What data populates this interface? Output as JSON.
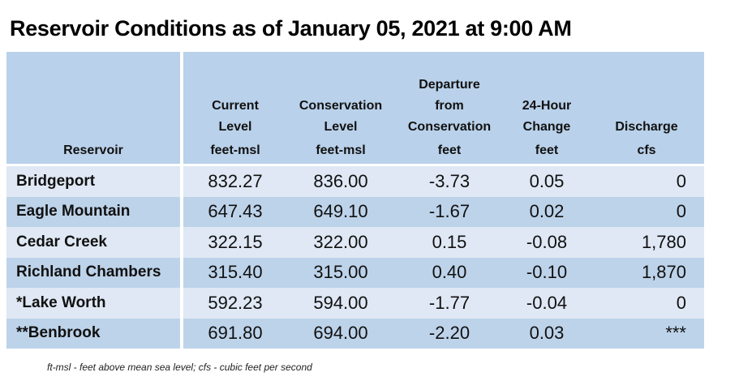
{
  "title": "Reservoir Conditions as of January 05, 2021 at 9:00 AM",
  "table": {
    "headers": [
      {
        "lines": [
          "",
          "",
          "",
          ""
        ],
        "unit": "Reservoir"
      },
      {
        "lines": [
          "",
          "",
          "Current",
          "Level"
        ],
        "unit": "feet-msl"
      },
      {
        "lines": [
          "",
          "",
          "Conservation",
          "Level"
        ],
        "unit": "feet-msl"
      },
      {
        "lines": [
          "",
          "Departure",
          "from",
          "Conservation"
        ],
        "unit": "feet"
      },
      {
        "lines": [
          "",
          "",
          "24-Hour",
          "Change"
        ],
        "unit": "feet"
      },
      {
        "lines": [
          "",
          "",
          "",
          "Discharge"
        ],
        "unit": "cfs"
      }
    ],
    "rows": [
      {
        "name": "Bridgeport",
        "current": "832.27",
        "conservation": "836.00",
        "departure": "-3.73",
        "change": "0.05",
        "discharge": "0"
      },
      {
        "name": "Eagle Mountain",
        "current": "647.43",
        "conservation": "649.10",
        "departure": "-1.67",
        "change": "0.02",
        "discharge": "0"
      },
      {
        "name": "Cedar Creek",
        "current": "322.15",
        "conservation": "322.00",
        "departure": "0.15",
        "change": "-0.08",
        "discharge": "1,780"
      },
      {
        "name": "Richland Chambers",
        "current": "315.40",
        "conservation": "315.00",
        "departure": "0.40",
        "change": "-0.10",
        "discharge": "1,870"
      },
      {
        "name": "*Lake Worth",
        "current": "592.23",
        "conservation": "594.00",
        "departure": "-1.77",
        "change": "-0.04",
        "discharge": "0"
      },
      {
        "name": "**Benbrook",
        "current": "691.80",
        "conservation": "694.00",
        "departure": "-2.20",
        "change": "0.03",
        "discharge": "***"
      }
    ]
  },
  "footnote": "ft-msl - feet above mean sea level; cfs - cubic feet per second",
  "colors": {
    "header_bg": "#b9d1ea",
    "row_light": "#dfe8f4",
    "row_dark": "#bdd3ea"
  }
}
